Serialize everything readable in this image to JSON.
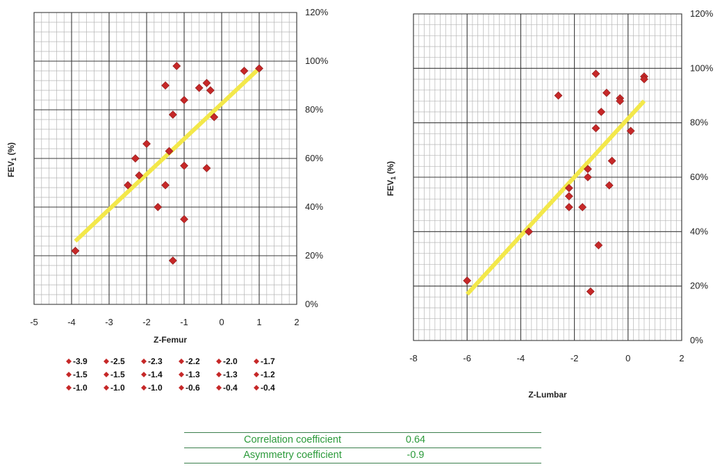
{
  "chart_data": [
    {
      "type": "scatter",
      "xlabel": "Z-Femur",
      "ylabel": "FEV",
      "ylabel_sub": "1",
      "ylabel_suffix": " (%)",
      "xlim": [
        -5,
        2
      ],
      "ylim": [
        0,
        120
      ],
      "xticks": [
        "-5",
        "-4",
        "-3",
        "-2",
        "-1",
        "0",
        "1",
        "2"
      ],
      "yticks": [
        "0%",
        "20%",
        "40%",
        "60%",
        "80%",
        "100%",
        "120%"
      ],
      "grid": true,
      "marker_color": "#c62828",
      "trendline": {
        "color": "#f3e84a",
        "x": [
          -3.9,
          1.0
        ],
        "y": [
          26,
          97
        ]
      },
      "points": [
        {
          "x": -3.9,
          "y": 22
        },
        {
          "x": -2.5,
          "y": 49
        },
        {
          "x": -2.3,
          "y": 60
        },
        {
          "x": -2.2,
          "y": 53
        },
        {
          "x": -2.0,
          "y": 66
        },
        {
          "x": -1.7,
          "y": 40
        },
        {
          "x": -1.5,
          "y": 90
        },
        {
          "x": -1.5,
          "y": 49
        },
        {
          "x": -1.4,
          "y": 63
        },
        {
          "x": -1.3,
          "y": 78
        },
        {
          "x": -1.3,
          "y": 18
        },
        {
          "x": -1.2,
          "y": 98
        },
        {
          "x": -1.0,
          "y": 84
        },
        {
          "x": -1.0,
          "y": 57
        },
        {
          "x": -1.0,
          "y": 35
        },
        {
          "x": -0.6,
          "y": 89
        },
        {
          "x": -0.4,
          "y": 91
        },
        {
          "x": -0.4,
          "y": 56
        },
        {
          "x": -0.3,
          "y": 88
        },
        {
          "x": -0.2,
          "y": 77
        },
        {
          "x": 0.6,
          "y": 96
        },
        {
          "x": 1.0,
          "y": 97
        }
      ],
      "legend": [
        "-3.9",
        "-2.5",
        "-2.3",
        "-2.2",
        "-2.0",
        "-1.7",
        "-1.5",
        "-1.5",
        "-1.4",
        "-1.3",
        "-1.3",
        "-1.2",
        "-1.0",
        "-1.0",
        "-1.0",
        "-0.6",
        "-0.4",
        "-0.4"
      ]
    },
    {
      "type": "scatter",
      "xlabel": "Z-Lumbar",
      "ylabel": "FEV",
      "ylabel_sub": "1",
      "ylabel_suffix": " (%)",
      "xlim": [
        -8,
        2
      ],
      "ylim": [
        0,
        120
      ],
      "xticks": [
        "-8",
        "-6",
        "-4",
        "-2",
        "0",
        "2"
      ],
      "yticks": [
        "0%",
        "20%",
        "40%",
        "60%",
        "80%",
        "100%",
        "120%"
      ],
      "grid": true,
      "marker_color": "#c62828",
      "trendline": {
        "color": "#f3e84a",
        "x": [
          -6.0,
          0.6
        ],
        "y": [
          17,
          88
        ]
      },
      "points": [
        {
          "x": -6.0,
          "y": 22
        },
        {
          "x": -3.7,
          "y": 40
        },
        {
          "x": -2.6,
          "y": 90
        },
        {
          "x": -2.2,
          "y": 56
        },
        {
          "x": -2.2,
          "y": 53
        },
        {
          "x": -2.2,
          "y": 49
        },
        {
          "x": -1.7,
          "y": 49
        },
        {
          "x": -1.5,
          "y": 63
        },
        {
          "x": -1.5,
          "y": 60
        },
        {
          "x": -1.4,
          "y": 18
        },
        {
          "x": -1.2,
          "y": 98
        },
        {
          "x": -1.2,
          "y": 78
        },
        {
          "x": -1.1,
          "y": 35
        },
        {
          "x": -1.0,
          "y": 84
        },
        {
          "x": -0.8,
          "y": 91
        },
        {
          "x": -0.7,
          "y": 57
        },
        {
          "x": -0.6,
          "y": 66
        },
        {
          "x": -0.3,
          "y": 89
        },
        {
          "x": -0.3,
          "y": 88
        },
        {
          "x": 0.1,
          "y": 77
        },
        {
          "x": 0.6,
          "y": 97
        },
        {
          "x": 0.6,
          "y": 96
        }
      ]
    }
  ],
  "stats_table": [
    {
      "label": "Correlation coefficient",
      "value": "0.64"
    },
    {
      "label": "Asymmetry coefficient",
      "value": "-0.9"
    }
  ]
}
